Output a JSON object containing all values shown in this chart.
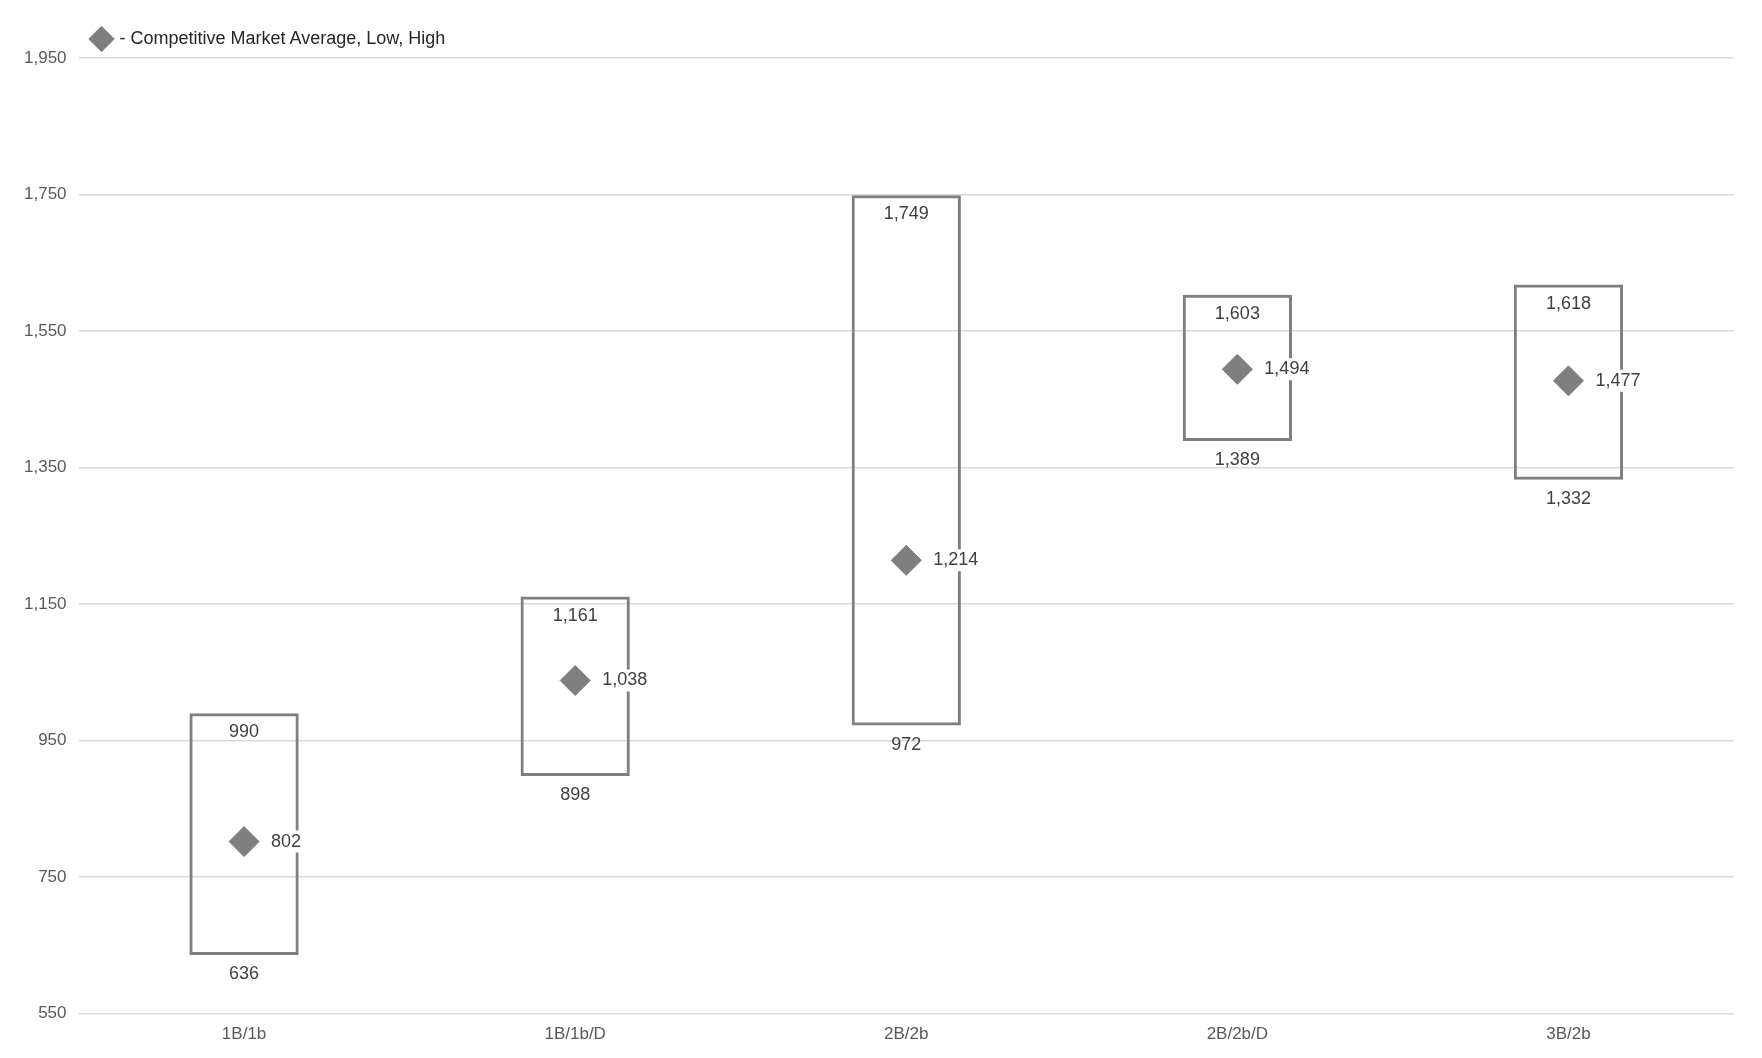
{
  "chart_data": {
    "type": "bar",
    "categories": [
      "1B/1b",
      "1B/1b/D",
      "2B/2b",
      "2B/2b/D",
      "3B/2b"
    ],
    "series": [
      {
        "color": "#7f7f7f",
        "base": [
          636,
          898,
          972,
          1389,
          1332
        ],
        "values": [
          354,
          263,
          777,
          214,
          286
        ]
      },
      {
        "type": "scatter",
        "name": "- Competitive Market Average, Low, High",
        "color": "#7f7f7f",
        "x": [
          "1B/1b",
          "1B/1b/D",
          "2B/2b",
          "2B/2b/D",
          "3B/2b"
        ],
        "values": [
          802,
          1038,
          1214,
          1494,
          1477
        ]
      }
    ],
    "ylim": [
      550,
      1950
    ],
    "yticks": [
      550,
      750,
      950,
      {
        "value": 1150,
        "label": "1,150"
      },
      {
        "value": 1350,
        "label": "1,350"
      },
      {
        "value": 1550,
        "label": "1,550"
      },
      {
        "value": 1750,
        "label": "1,750"
      },
      {
        "value": 1950,
        "label": "1,950"
      }
    ],
    "grid": "y",
    "legend": "top left",
    "marker": "diamond",
    "annotations": [
      {
        "text": "990",
        "x": "1B/1b",
        "y": 990
      },
      {
        "text": "636",
        "x": "1B/1b",
        "y": 636
      },
      {
        "text": "802",
        "x": "1B/1b",
        "y": 802
      },
      {
        "text": "1,161",
        "x": "1B/1b/D",
        "y": 1161
      },
      {
        "text": "898",
        "x": "1B/1b/D",
        "y": 898
      },
      {
        "text": "1,038",
        "x": "1B/1b/D",
        "y": 1038
      },
      {
        "text": "1,749",
        "x": "2B/2b",
        "y": 1749
      },
      {
        "text": "972",
        "x": "2B/2b",
        "y": 972
      },
      {
        "text": "1,214",
        "x": "2B/2b",
        "y": 1214
      },
      {
        "text": "1,603",
        "x": "2B/2b/D",
        "y": 1603
      },
      {
        "text": "1,389",
        "x": "2B/2b/D",
        "y": 1389
      },
      {
        "text": "1,494",
        "x": "2B/2b/D",
        "y": 1494
      },
      {
        "text": "1,618",
        "x": "3B/2b",
        "y": 1618
      },
      {
        "text": "1,332",
        "x": "3B/2b",
        "y": 1332
      },
      {
        "text": "1,477",
        "x": "3B/2b",
        "y": 1477
      }
    ]
  }
}
